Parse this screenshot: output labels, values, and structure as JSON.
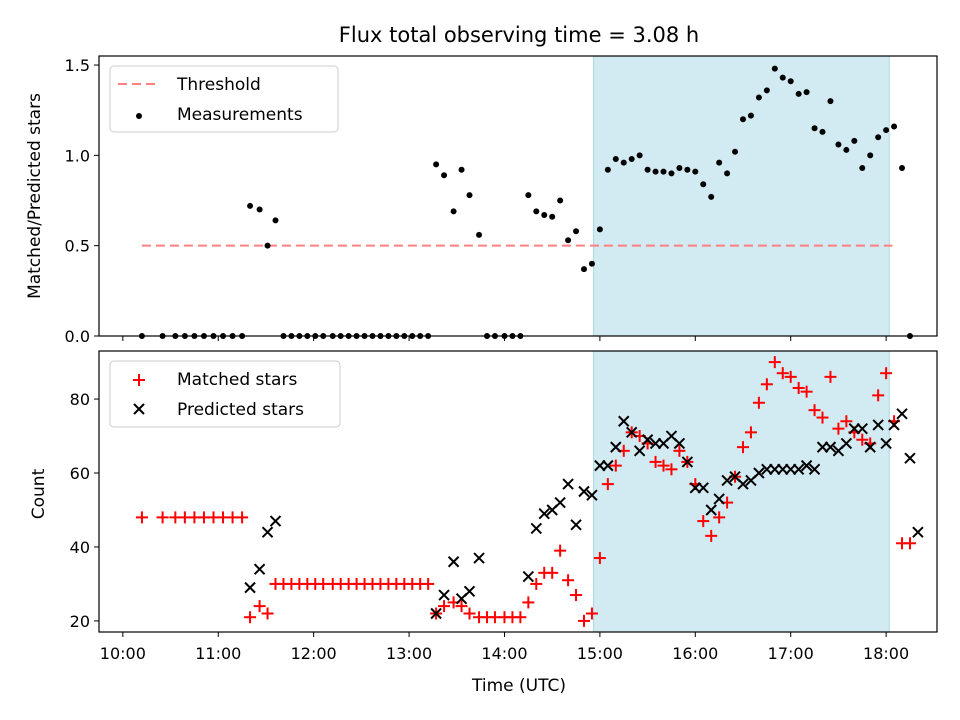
{
  "figure": {
    "title": "Flux total observing time = 3.08 h",
    "xlabel": "Time (UTC)",
    "x_ticks": [
      "10:00",
      "11:00",
      "12:00",
      "13:00",
      "14:00",
      "15:00",
      "16:00",
      "17:00",
      "18:00"
    ],
    "shaded_region": {
      "color": "#add8e6",
      "x_start": "14:56",
      "x_end": "18:02"
    }
  },
  "chart_data": [
    {
      "type": "scatter",
      "ylabel": "Matched/Predicted stars",
      "xlim": [
        "09:45",
        "18:32"
      ],
      "ylim": [
        0,
        1.55
      ],
      "y_ticks": [
        "0.0",
        "0.5",
        "1.0",
        "1.5"
      ],
      "legend": {
        "placement": "top-left",
        "entries": [
          "Threshold",
          "Measurements"
        ]
      },
      "threshold": {
        "name": "Threshold",
        "value": 0.5,
        "x_start": "10:12",
        "x_end": "18:04",
        "color": "#ff8080",
        "style": "dashed"
      },
      "series": [
        {
          "name": "Measurements",
          "color": "#000000",
          "points": [
            [
              "10:12",
              0
            ],
            [
              "10:25",
              0
            ],
            [
              "10:33",
              0
            ],
            [
              "10:39",
              0
            ],
            [
              "10:45",
              0
            ],
            [
              "10:51",
              0
            ],
            [
              "10:57",
              0
            ],
            [
              "11:03",
              0
            ],
            [
              "11:09",
              0
            ],
            [
              "11:15",
              0
            ],
            [
              "11:20",
              0.72
            ],
            [
              "11:26",
              0.7
            ],
            [
              "11:31",
              0.5
            ],
            [
              "11:36",
              0.64
            ],
            [
              "11:41",
              0
            ],
            [
              "11:46",
              0
            ],
            [
              "11:51",
              0
            ],
            [
              "11:56",
              0
            ],
            [
              "12:01",
              0
            ],
            [
              "12:06",
              0
            ],
            [
              "12:12",
              0
            ],
            [
              "12:17",
              0
            ],
            [
              "12:22",
              0
            ],
            [
              "12:27",
              0
            ],
            [
              "12:32",
              0
            ],
            [
              "12:37",
              0
            ],
            [
              "12:42",
              0
            ],
            [
              "12:47",
              0
            ],
            [
              "12:52",
              0
            ],
            [
              "12:57",
              0
            ],
            [
              "13:02",
              0
            ],
            [
              "13:07",
              0
            ],
            [
              "13:12",
              0
            ],
            [
              "13:17",
              0.95
            ],
            [
              "13:22",
              0.89
            ],
            [
              "13:28",
              0.69
            ],
            [
              "13:33",
              0.92
            ],
            [
              "13:38",
              0.78
            ],
            [
              "13:44",
              0.56
            ],
            [
              "13:49",
              0
            ],
            [
              "13:54",
              0
            ],
            [
              "14:00",
              0
            ],
            [
              "14:05",
              0
            ],
            [
              "14:10",
              0
            ],
            [
              "14:15",
              0.78
            ],
            [
              "14:20",
              0.69
            ],
            [
              "14:25",
              0.67
            ],
            [
              "14:30",
              0.66
            ],
            [
              "14:35",
              0.75
            ],
            [
              "14:40",
              0.53
            ],
            [
              "14:45",
              0.58
            ],
            [
              "14:50",
              0.37
            ],
            [
              "14:55",
              0.4
            ],
            [
              "15:00",
              0.59
            ],
            [
              "15:05",
              0.92
            ],
            [
              "15:10",
              0.98
            ],
            [
              "15:15",
              0.96
            ],
            [
              "15:20",
              0.98
            ],
            [
              "15:25",
              1.0
            ],
            [
              "15:30",
              0.92
            ],
            [
              "15:35",
              0.91
            ],
            [
              "15:40",
              0.91
            ],
            [
              "15:45",
              0.9
            ],
            [
              "15:50",
              0.93
            ],
            [
              "15:55",
              0.92
            ],
            [
              "16:00",
              0.91
            ],
            [
              "16:05",
              0.84
            ],
            [
              "16:10",
              0.77
            ],
            [
              "16:15",
              0.96
            ],
            [
              "16:20",
              0.9
            ],
            [
              "16:25",
              1.02
            ],
            [
              "16:30",
              1.2
            ],
            [
              "16:35",
              1.22
            ],
            [
              "16:40",
              1.32
            ],
            [
              "16:45",
              1.36
            ],
            [
              "16:50",
              1.48
            ],
            [
              "16:55",
              1.43
            ],
            [
              "17:00",
              1.41
            ],
            [
              "17:05",
              1.34
            ],
            [
              "17:10",
              1.35
            ],
            [
              "17:15",
              1.15
            ],
            [
              "17:20",
              1.13
            ],
            [
              "17:25",
              1.3
            ],
            [
              "17:30",
              1.06
            ],
            [
              "17:35",
              1.03
            ],
            [
              "17:40",
              1.08
            ],
            [
              "17:45",
              0.93
            ],
            [
              "17:50",
              1.0
            ],
            [
              "17:55",
              1.1
            ],
            [
              "18:00",
              1.14
            ],
            [
              "18:05",
              1.16
            ],
            [
              "18:10",
              0.93
            ],
            [
              "18:15",
              0
            ]
          ]
        }
      ]
    },
    {
      "type": "scatter",
      "ylabel": "Count",
      "xlim": [
        "09:45",
        "18:32"
      ],
      "ylim": [
        17,
        93
      ],
      "y_ticks": [
        "20",
        "40",
        "60",
        "80"
      ],
      "legend": {
        "placement": "top-left",
        "entries": [
          "Matched stars",
          "Predicted stars"
        ]
      },
      "series": [
        {
          "name": "Matched stars",
          "marker": "+",
          "color": "#ff0000",
          "points": [
            [
              "10:12",
              48
            ],
            [
              "10:25",
              48
            ],
            [
              "10:33",
              48
            ],
            [
              "10:39",
              48
            ],
            [
              "10:45",
              48
            ],
            [
              "10:51",
              48
            ],
            [
              "10:57",
              48
            ],
            [
              "11:03",
              48
            ],
            [
              "11:09",
              48
            ],
            [
              "11:15",
              48
            ],
            [
              "11:20",
              21
            ],
            [
              "11:26",
              24
            ],
            [
              "11:31",
              22
            ],
            [
              "11:36",
              30
            ],
            [
              "11:41",
              30
            ],
            [
              "11:46",
              30
            ],
            [
              "11:51",
              30
            ],
            [
              "11:56",
              30
            ],
            [
              "12:01",
              30
            ],
            [
              "12:06",
              30
            ],
            [
              "12:12",
              30
            ],
            [
              "12:17",
              30
            ],
            [
              "12:22",
              30
            ],
            [
              "12:27",
              30
            ],
            [
              "12:32",
              30
            ],
            [
              "12:37",
              30
            ],
            [
              "12:42",
              30
            ],
            [
              "12:47",
              30
            ],
            [
              "12:52",
              30
            ],
            [
              "12:57",
              30
            ],
            [
              "13:02",
              30
            ],
            [
              "13:07",
              30
            ],
            [
              "13:12",
              30
            ],
            [
              "13:17",
              22
            ],
            [
              "13:22",
              24
            ],
            [
              "13:28",
              25
            ],
            [
              "13:33",
              24
            ],
            [
              "13:38",
              22
            ],
            [
              "13:44",
              21
            ],
            [
              "13:49",
              21
            ],
            [
              "13:54",
              21
            ],
            [
              "14:00",
              21
            ],
            [
              "14:05",
              21
            ],
            [
              "14:10",
              21
            ],
            [
              "14:15",
              25
            ],
            [
              "14:20",
              30
            ],
            [
              "14:25",
              33
            ],
            [
              "14:30",
              33
            ],
            [
              "14:35",
              39
            ],
            [
              "14:40",
              31
            ],
            [
              "14:45",
              27
            ],
            [
              "14:50",
              20
            ],
            [
              "14:55",
              22
            ],
            [
              "15:00",
              37
            ],
            [
              "15:05",
              57
            ],
            [
              "15:10",
              62
            ],
            [
              "15:15",
              66
            ],
            [
              "15:20",
              71
            ],
            [
              "15:25",
              70
            ],
            [
              "15:30",
              68
            ],
            [
              "15:35",
              63
            ],
            [
              "15:40",
              62
            ],
            [
              "15:45",
              61
            ],
            [
              "15:50",
              66
            ],
            [
              "15:55",
              63
            ],
            [
              "16:00",
              57
            ],
            [
              "16:05",
              47
            ],
            [
              "16:10",
              43
            ],
            [
              "16:15",
              48
            ],
            [
              "16:20",
              52
            ],
            [
              "16:25",
              59
            ],
            [
              "16:30",
              67
            ],
            [
              "16:35",
              71
            ],
            [
              "16:40",
              79
            ],
            [
              "16:45",
              84
            ],
            [
              "16:50",
              90
            ],
            [
              "16:55",
              87
            ],
            [
              "17:00",
              86
            ],
            [
              "17:05",
              83
            ],
            [
              "17:10",
              82
            ],
            [
              "17:15",
              77
            ],
            [
              "17:20",
              75
            ],
            [
              "17:25",
              86
            ],
            [
              "17:30",
              72
            ],
            [
              "17:35",
              74
            ],
            [
              "17:40",
              71
            ],
            [
              "17:45",
              69
            ],
            [
              "17:50",
              68
            ],
            [
              "17:55",
              81
            ],
            [
              "18:00",
              87
            ],
            [
              "18:05",
              74
            ],
            [
              "18:10",
              41
            ],
            [
              "18:15",
              41
            ]
          ]
        },
        {
          "name": "Predicted stars",
          "marker": "x",
          "color": "#000000",
          "points": [
            [
              "11:20",
              29
            ],
            [
              "11:26",
              34
            ],
            [
              "11:31",
              44
            ],
            [
              "11:36",
              47
            ],
            [
              "13:17",
              22
            ],
            [
              "13:22",
              27
            ],
            [
              "13:28",
              36
            ],
            [
              "13:33",
              26
            ],
            [
              "13:38",
              28
            ],
            [
              "13:44",
              37
            ],
            [
              "14:15",
              32
            ],
            [
              "14:20",
              45
            ],
            [
              "14:25",
              49
            ],
            [
              "14:30",
              50
            ],
            [
              "14:35",
              52
            ],
            [
              "14:40",
              57
            ],
            [
              "14:45",
              46
            ],
            [
              "14:50",
              55
            ],
            [
              "14:55",
              54
            ],
            [
              "15:00",
              62
            ],
            [
              "15:05",
              62
            ],
            [
              "15:10",
              67
            ],
            [
              "15:15",
              74
            ],
            [
              "15:20",
              71
            ],
            [
              "15:25",
              66
            ],
            [
              "15:30",
              69
            ],
            [
              "15:35",
              68
            ],
            [
              "15:40",
              68
            ],
            [
              "15:45",
              70
            ],
            [
              "15:50",
              68
            ],
            [
              "15:55",
              63
            ],
            [
              "16:00",
              56
            ],
            [
              "16:05",
              56
            ],
            [
              "16:10",
              50
            ],
            [
              "16:15",
              53
            ],
            [
              "16:20",
              58
            ],
            [
              "16:25",
              59
            ],
            [
              "16:30",
              57
            ],
            [
              "16:35",
              58
            ],
            [
              "16:40",
              60
            ],
            [
              "16:45",
              61
            ],
            [
              "16:50",
              61
            ],
            [
              "16:55",
              61
            ],
            [
              "17:00",
              61
            ],
            [
              "17:05",
              61
            ],
            [
              "17:10",
              62
            ],
            [
              "17:15",
              61
            ],
            [
              "17:20",
              67
            ],
            [
              "17:25",
              67
            ],
            [
              "17:30",
              66
            ],
            [
              "17:35",
              68
            ],
            [
              "17:40",
              72
            ],
            [
              "17:45",
              72
            ],
            [
              "17:50",
              67
            ],
            [
              "17:55",
              73
            ],
            [
              "18:00",
              68
            ],
            [
              "18:05",
              73
            ],
            [
              "18:10",
              76
            ],
            [
              "18:15",
              64
            ],
            [
              "18:20",
              44
            ]
          ]
        }
      ]
    }
  ]
}
